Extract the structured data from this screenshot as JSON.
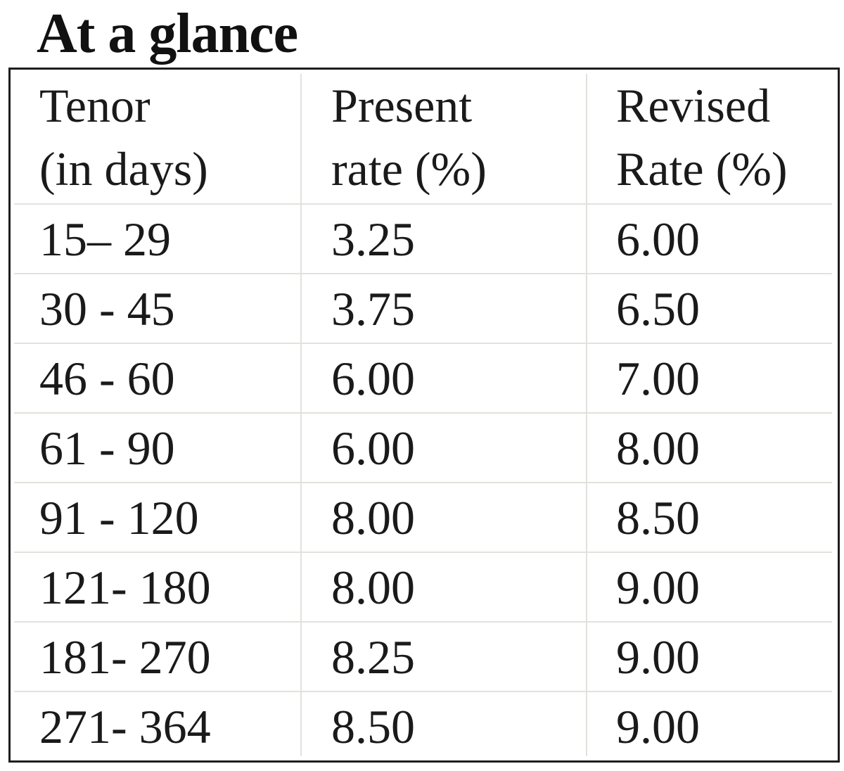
{
  "title": "At a glance",
  "table": {
    "headers": [
      {
        "line1": "Tenor",
        "line2": "(in days)"
      },
      {
        "line1": "Present",
        "line2": "rate (%)"
      },
      {
        "line1": "Revised",
        "line2": "Rate (%)"
      }
    ],
    "rows": [
      [
        "15– 29",
        "3.25",
        "6.00"
      ],
      [
        "30 - 45",
        "3.75",
        "6.50"
      ],
      [
        "46 - 60",
        "6.00",
        "7.00"
      ],
      [
        "61 - 90",
        "6.00",
        "8.00"
      ],
      [
        "91 - 120",
        "8.00",
        "8.50"
      ],
      [
        "121- 180",
        "8.00",
        "9.00"
      ],
      [
        "181- 270",
        "8.25",
        "9.00"
      ],
      [
        "271- 364",
        "8.50",
        "9.00"
      ]
    ]
  }
}
